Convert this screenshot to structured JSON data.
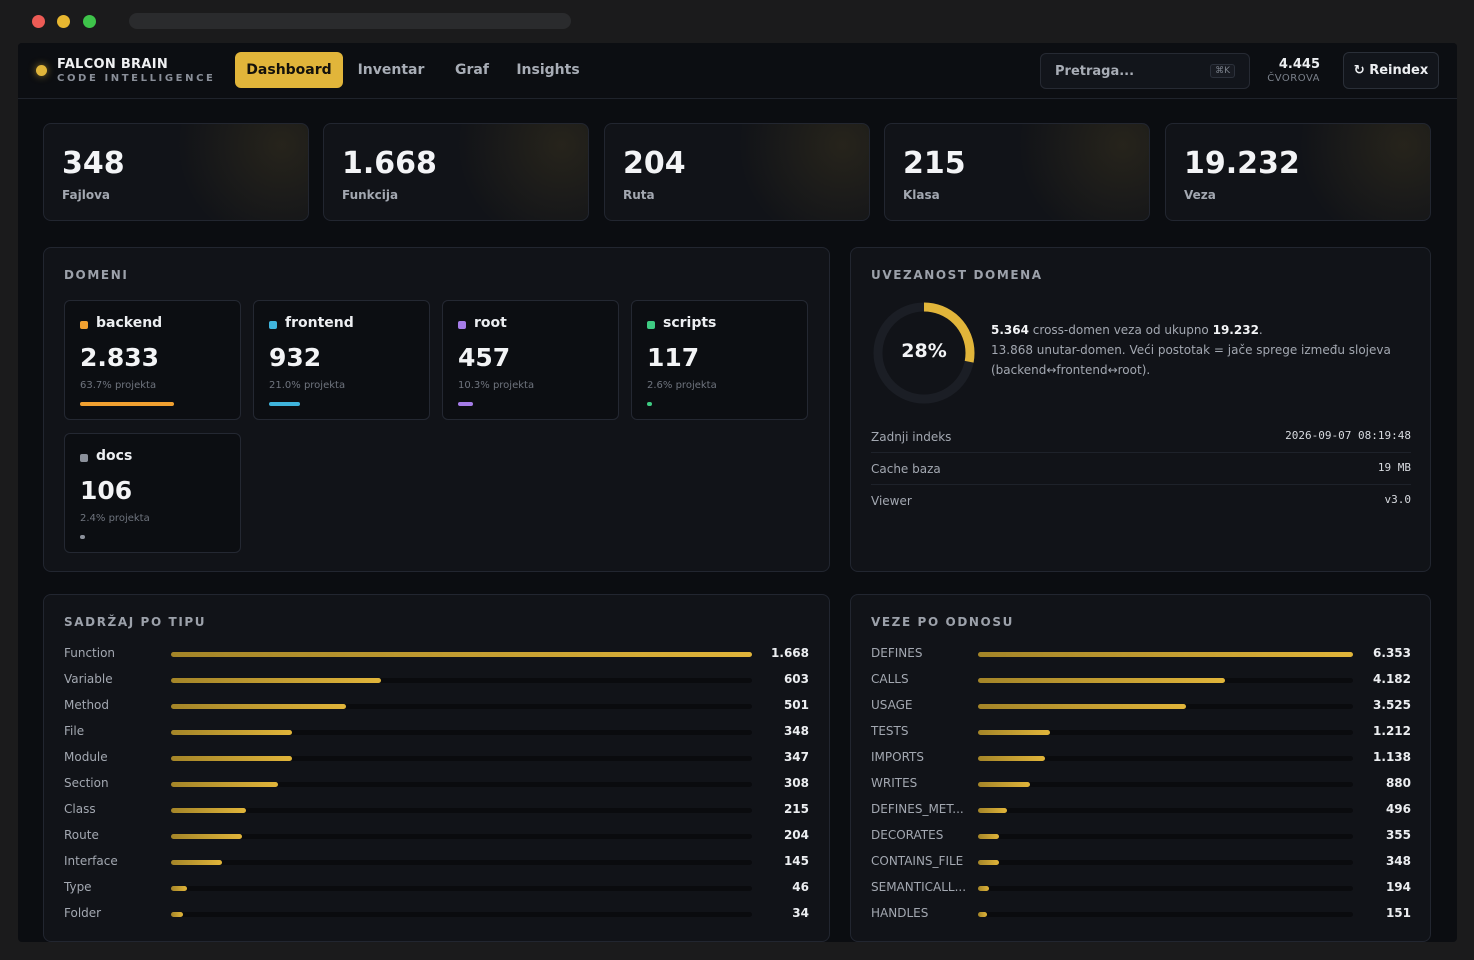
{
  "brand": {
    "title": "FALCON BRAIN",
    "subtitle": "CODE INTELLIGENCE",
    "accent": "#e1b53a"
  },
  "nav": {
    "tabs": [
      {
        "label": "Dashboard",
        "active": true
      },
      {
        "label": "Inventar",
        "active": false
      },
      {
        "label": "Graf",
        "active": false
      },
      {
        "label": "Insights",
        "active": false
      }
    ],
    "search": {
      "placeholder": "Pretraga...",
      "shortcut": "⌘K"
    },
    "nodes": {
      "value": "4.445",
      "label": "ČVOROVA"
    },
    "reindex_label": "Reindex",
    "reindex_icon": "refresh-icon"
  },
  "stats": [
    {
      "value": "348",
      "label": "Fajlova"
    },
    {
      "value": "1.668",
      "label": "Funkcija"
    },
    {
      "value": "204",
      "label": "Ruta"
    },
    {
      "value": "215",
      "label": "Klasa"
    },
    {
      "value": "19.232",
      "label": "Veza"
    }
  ],
  "domains": {
    "title": "DOMENI",
    "items": [
      {
        "name": "backend",
        "value": "2.833",
        "pct": "63.7% projekta",
        "fraction": 0.637,
        "color": "#f0a030"
      },
      {
        "name": "frontend",
        "value": "932",
        "pct": "21.0% projekta",
        "fraction": 0.21,
        "color": "#3fb4dc"
      },
      {
        "name": "root",
        "value": "457",
        "pct": "10.3% projekta",
        "fraction": 0.103,
        "color": "#a57ce8"
      },
      {
        "name": "scripts",
        "value": "117",
        "pct": "2.6% projekta",
        "fraction": 0.026,
        "color": "#3ecb82"
      },
      {
        "name": "docs",
        "value": "106",
        "pct": "2.4% projekta",
        "fraction": 0.024,
        "color": "#8c919b"
      }
    ]
  },
  "connectivity": {
    "title": "UVEZANOST DOMENA",
    "percent_label": "28%",
    "percent": 0.28,
    "cross": "5.364",
    "cross_text": "cross-domen veza od ukupno",
    "total": "19.232",
    "line2": "13.868 unutar-domen. Veći postotak = jače sprege između slojeva",
    "line3": "(backend↔frontend↔root).",
    "info": [
      {
        "key": "Zadnji indeks",
        "value": "2026-09-07 08:19:48"
      },
      {
        "key": "Cache baza",
        "value": "19 MB"
      },
      {
        "key": "Viewer",
        "value": "v3.0"
      }
    ]
  },
  "by_type": {
    "title": "SADRŽAJ PO TIPU",
    "max": 1668,
    "rows": [
      {
        "label": "Function",
        "value": 1668,
        "display": "1.668"
      },
      {
        "label": "Variable",
        "value": 603,
        "display": "603"
      },
      {
        "label": "Method",
        "value": 501,
        "display": "501"
      },
      {
        "label": "File",
        "value": 348,
        "display": "348"
      },
      {
        "label": "Module",
        "value": 347,
        "display": "347"
      },
      {
        "label": "Section",
        "value": 308,
        "display": "308"
      },
      {
        "label": "Class",
        "value": 215,
        "display": "215"
      },
      {
        "label": "Route",
        "value": 204,
        "display": "204"
      },
      {
        "label": "Interface",
        "value": 145,
        "display": "145"
      },
      {
        "label": "Type",
        "value": 46,
        "display": "46"
      },
      {
        "label": "Folder",
        "value": 34,
        "display": "34"
      }
    ]
  },
  "by_relation": {
    "title": "VEZE PO ODNOSU",
    "max": 6353,
    "rows": [
      {
        "label": "DEFINES",
        "value": 6353,
        "display": "6.353"
      },
      {
        "label": "CALLS",
        "value": 4182,
        "display": "4.182"
      },
      {
        "label": "USAGE",
        "value": 3525,
        "display": "3.525"
      },
      {
        "label": "TESTS",
        "value": 1212,
        "display": "1.212"
      },
      {
        "label": "IMPORTS",
        "value": 1138,
        "display": "1.138"
      },
      {
        "label": "WRITES",
        "value": 880,
        "display": "880"
      },
      {
        "label": "DEFINES_MET...",
        "value": 496,
        "display": "496"
      },
      {
        "label": "DECORATES",
        "value": 355,
        "display": "355"
      },
      {
        "label": "CONTAINS_FILE",
        "value": 348,
        "display": "348"
      },
      {
        "label": "SEMANTICALL...",
        "value": 194,
        "display": "194"
      },
      {
        "label": "HANDLES",
        "value": 151,
        "display": "151"
      }
    ]
  }
}
